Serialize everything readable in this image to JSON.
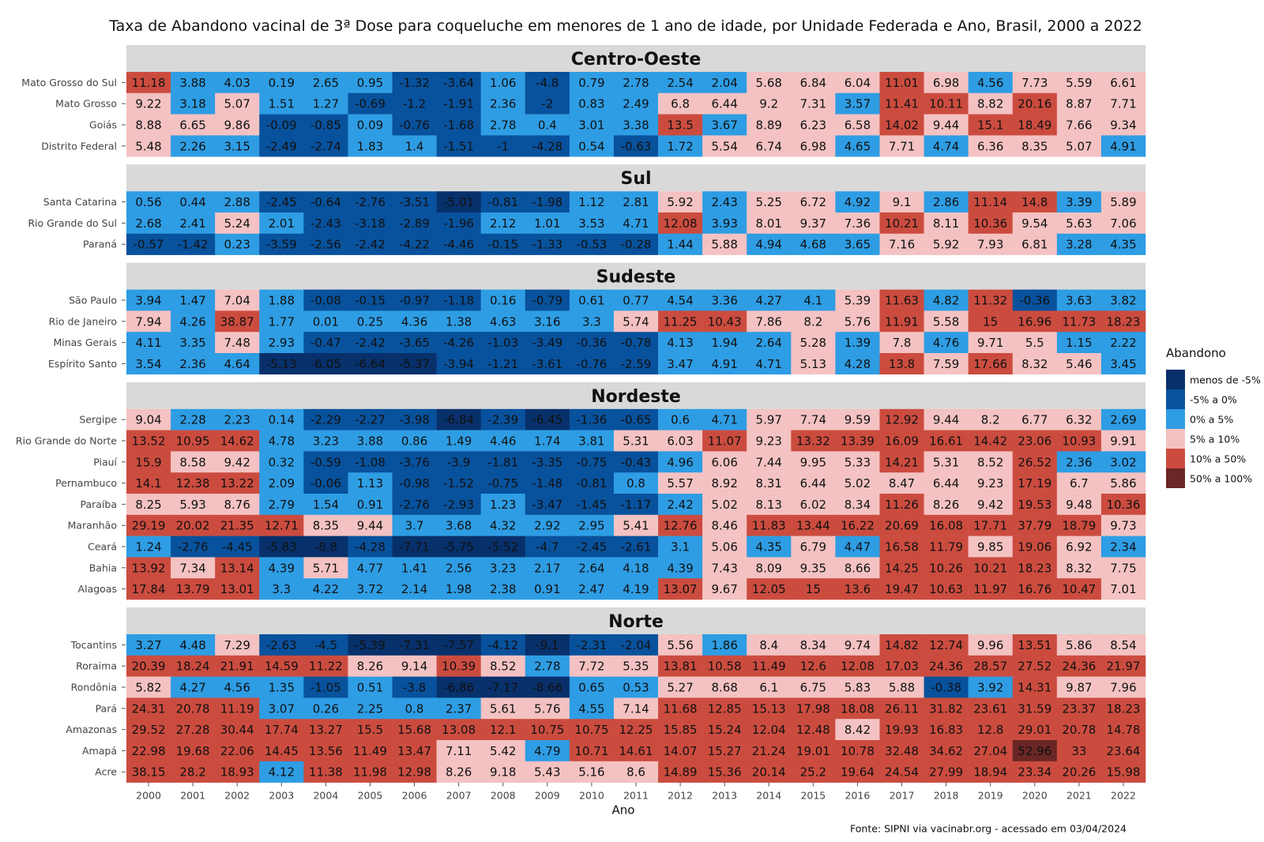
{
  "chart_data": {
    "type": "heatmap",
    "title": "Taxa de Abandono vacinal de 3ª Dose para coqueluche em menores de 1 ano de idade, por Unidade Federada e Ano, Brasil, 2000 a 2022",
    "xlabel": "Ano",
    "caption": "Fonte: SIPNI via vacinabr.org - acessado em 03/04/2024",
    "years": [
      "2000",
      "2001",
      "2002",
      "2003",
      "2004",
      "2005",
      "2006",
      "2007",
      "2008",
      "2009",
      "2010",
      "2011",
      "2012",
      "2013",
      "2014",
      "2015",
      "2016",
      "2017",
      "2018",
      "2019",
      "2020",
      "2021",
      "2022"
    ],
    "legend": {
      "title": "Abandono",
      "position": "right",
      "items": [
        {
          "label": "menos de -5%",
          "color": "#08306b"
        },
        {
          "label": "-5% a 0%",
          "color": "#08519c"
        },
        {
          "label": "0% a 5%",
          "color": "#2e9de4"
        },
        {
          "label": "5% a 10%",
          "color": "#f4c2c2"
        },
        {
          "label": "10% a 50%",
          "color": "#cb4c3f"
        },
        {
          "label": "50% a 100%",
          "color": "#6b2626"
        }
      ]
    },
    "panels": [
      {
        "region": "Centro-Oeste",
        "rows": [
          {
            "uf": "Mato Grosso do Sul",
            "values": [
              11.18,
              3.88,
              4.03,
              0.19,
              2.65,
              0.95,
              -1.32,
              -3.64,
              1.06,
              -4.8,
              0.79,
              2.78,
              2.54,
              2.04,
              5.68,
              6.84,
              6.04,
              11.01,
              6.98,
              4.56,
              7.73,
              5.59,
              6.61
            ]
          },
          {
            "uf": "Mato Grosso",
            "values": [
              9.22,
              3.18,
              5.07,
              1.51,
              1.27,
              -0.69,
              -1.2,
              -1.91,
              2.36,
              -2,
              0.83,
              2.49,
              6.8,
              6.44,
              9.2,
              7.31,
              3.57,
              11.41,
              10.11,
              8.82,
              20.16,
              8.87,
              7.71
            ]
          },
          {
            "uf": "Goiás",
            "values": [
              8.88,
              6.65,
              9.86,
              -0.09,
              -0.85,
              0.09,
              -0.76,
              -1.68,
              2.78,
              0.4,
              3.01,
              3.38,
              13.5,
              3.67,
              8.89,
              6.23,
              6.58,
              14.02,
              9.44,
              15.1,
              18.49,
              7.66,
              9.34
            ]
          },
          {
            "uf": "Distrito Federal",
            "values": [
              5.48,
              2.26,
              3.15,
              -2.49,
              -2.74,
              1.83,
              1.4,
              -1.51,
              -1,
              -4.28,
              0.54,
              -0.63,
              1.72,
              5.54,
              6.74,
              6.98,
              4.65,
              7.71,
              4.74,
              6.36,
              8.35,
              5.07,
              4.91
            ]
          }
        ]
      },
      {
        "region": "Sul",
        "rows": [
          {
            "uf": "Santa Catarina",
            "values": [
              0.56,
              0.44,
              2.88,
              -2.45,
              -0.64,
              -2.76,
              -3.51,
              -5.01,
              -0.81,
              -1.98,
              1.12,
              2.81,
              5.92,
              2.43,
              5.25,
              6.72,
              4.92,
              9.1,
              2.86,
              11.14,
              14.8,
              3.39,
              5.89
            ]
          },
          {
            "uf": "Rio Grande do Sul",
            "values": [
              2.68,
              2.41,
              5.24,
              2.01,
              -2.43,
              -3.18,
              -2.89,
              -1.96,
              2.12,
              1.01,
              3.53,
              4.71,
              12.08,
              3.93,
              8.01,
              9.37,
              7.36,
              10.21,
              8.11,
              10.36,
              9.54,
              5.63,
              7.06
            ]
          },
          {
            "uf": "Paraná",
            "values": [
              -0.57,
              -1.42,
              0.23,
              -3.59,
              -2.56,
              -2.42,
              -4.22,
              -4.46,
              -0.15,
              -1.33,
              -0.53,
              -0.28,
              1.44,
              5.88,
              4.94,
              4.68,
              3.65,
              7.16,
              5.92,
              7.93,
              6.81,
              3.28,
              4.35
            ]
          }
        ]
      },
      {
        "region": "Sudeste",
        "rows": [
          {
            "uf": "São Paulo",
            "values": [
              3.94,
              1.47,
              7.04,
              1.88,
              -0.08,
              -0.15,
              -0.97,
              -1.18,
              0.16,
              -0.79,
              0.61,
              0.77,
              4.54,
              3.36,
              4.27,
              4.1,
              5.39,
              11.63,
              4.82,
              11.32,
              -0.36,
              3.63,
              3.82
            ]
          },
          {
            "uf": "Rio de Janeiro",
            "values": [
              7.94,
              4.26,
              38.87,
              1.77,
              0.01,
              0.25,
              4.36,
              1.38,
              4.63,
              3.16,
              3.3,
              5.74,
              11.25,
              10.43,
              7.86,
              8.2,
              5.76,
              11.91,
              5.58,
              15,
              16.96,
              11.73,
              18.23
            ]
          },
          {
            "uf": "Minas Gerais",
            "values": [
              4.11,
              3.35,
              7.48,
              2.93,
              -0.47,
              -2.42,
              -3.65,
              -4.26,
              -1.03,
              -3.49,
              -0.36,
              -0.78,
              4.13,
              1.94,
              2.64,
              5.28,
              1.39,
              7.8,
              4.76,
              9.71,
              5.5,
              1.15,
              2.22
            ]
          },
          {
            "uf": "Espírito Santo",
            "values": [
              3.54,
              2.36,
              4.64,
              -5.13,
              -6.05,
              -6.64,
              -5.37,
              -3.94,
              -1.21,
              -3.61,
              -0.76,
              -2.59,
              3.47,
              4.91,
              4.71,
              5.13,
              4.28,
              13.8,
              7.59,
              17.66,
              8.32,
              5.46,
              3.45
            ]
          }
        ]
      },
      {
        "region": "Nordeste",
        "rows": [
          {
            "uf": "Sergipe",
            "values": [
              9.04,
              2.28,
              2.23,
              0.14,
              -2.29,
              -2.27,
              -3.98,
              -6.84,
              -2.39,
              -6.45,
              -1.36,
              -0.65,
              0.6,
              4.71,
              5.97,
              7.74,
              9.59,
              12.92,
              9.44,
              8.2,
              6.77,
              6.32,
              2.69
            ]
          },
          {
            "uf": "Rio Grande do Norte",
            "values": [
              13.52,
              10.95,
              14.62,
              4.78,
              3.23,
              3.88,
              0.86,
              1.49,
              4.46,
              1.74,
              3.81,
              5.31,
              6.03,
              11.07,
              9.23,
              13.32,
              13.39,
              16.09,
              16.61,
              14.42,
              23.06,
              10.93,
              9.91
            ]
          },
          {
            "uf": "Piauí",
            "values": [
              15.9,
              8.58,
              9.42,
              0.32,
              -0.59,
              -1.08,
              -3.76,
              -3.9,
              -1.81,
              -3.35,
              -0.75,
              -0.43,
              4.96,
              6.06,
              7.44,
              9.95,
              5.33,
              14.21,
              5.31,
              8.52,
              26.52,
              2.36,
              3.02
            ]
          },
          {
            "uf": "Pernambuco",
            "values": [
              14.1,
              12.38,
              13.22,
              2.09,
              -0.06,
              1.13,
              -0.98,
              -1.52,
              -0.75,
              -1.48,
              -0.81,
              0.8,
              5.57,
              8.92,
              8.31,
              6.44,
              5.02,
              8.47,
              6.44,
              9.23,
              17.19,
              6.7,
              5.86
            ]
          },
          {
            "uf": "Paraíba",
            "values": [
              8.25,
              5.93,
              8.76,
              2.79,
              1.54,
              0.91,
              -2.76,
              -2.93,
              1.23,
              -3.47,
              -1.45,
              -1.17,
              2.42,
              5.02,
              8.13,
              6.02,
              8.34,
              11.26,
              8.26,
              9.42,
              19.53,
              9.48,
              10.36
            ]
          },
          {
            "uf": "Maranhão",
            "values": [
              29.19,
              20.02,
              21.35,
              12.71,
              8.35,
              9.44,
              3.7,
              3.68,
              4.32,
              2.92,
              2.95,
              5.41,
              12.76,
              8.46,
              11.83,
              13.44,
              16.22,
              20.69,
              16.08,
              17.71,
              37.79,
              18.79,
              9.73
            ]
          },
          {
            "uf": "Ceará",
            "values": [
              1.24,
              -2.76,
              -4.45,
              -5.83,
              -8.8,
              -4.28,
              -7.71,
              -5.75,
              -5.52,
              -4.7,
              -2.45,
              -2.61,
              3.1,
              5.06,
              4.35,
              6.79,
              4.47,
              16.58,
              11.79,
              9.85,
              19.06,
              6.92,
              2.34
            ]
          },
          {
            "uf": "Bahia",
            "values": [
              13.92,
              7.34,
              13.14,
              4.39,
              5.71,
              4.77,
              1.41,
              2.56,
              3.23,
              2.17,
              2.64,
              4.18,
              4.39,
              7.43,
              8.09,
              9.35,
              8.66,
              14.25,
              10.26,
              10.21,
              18.23,
              8.32,
              7.75
            ]
          },
          {
            "uf": "Alagoas",
            "values": [
              17.84,
              13.79,
              13.01,
              3.3,
              4.22,
              3.72,
              2.14,
              1.98,
              2.38,
              0.91,
              2.47,
              4.19,
              13.07,
              9.67,
              12.05,
              15,
              13.6,
              19.47,
              10.63,
              11.97,
              16.76,
              10.47,
              7.01
            ]
          }
        ]
      },
      {
        "region": "Norte",
        "rows": [
          {
            "uf": "Tocantins",
            "values": [
              3.27,
              4.48,
              7.29,
              -2.63,
              -4.5,
              -5.39,
              -7.31,
              -7.57,
              -4.12,
              -9.1,
              -2.31,
              -2.04,
              5.56,
              1.86,
              8.4,
              8.34,
              9.74,
              14.82,
              12.74,
              9.96,
              13.51,
              5.86,
              8.54
            ]
          },
          {
            "uf": "Roraima",
            "values": [
              20.39,
              18.24,
              21.91,
              14.59,
              11.22,
              8.26,
              9.14,
              10.39,
              8.52,
              2.78,
              7.72,
              5.35,
              13.81,
              10.58,
              11.49,
              12.6,
              12.08,
              17.03,
              24.36,
              28.57,
              27.52,
              24.36,
              21.97
            ]
          },
          {
            "uf": "Rondônia",
            "values": [
              5.82,
              4.27,
              4.56,
              1.35,
              -1.05,
              0.51,
              -3.8,
              -6.86,
              -7.17,
              -8.66,
              0.65,
              0.53,
              5.27,
              8.68,
              6.1,
              6.75,
              5.83,
              5.88,
              -0.38,
              3.92,
              14.31,
              9.87,
              7.96
            ]
          },
          {
            "uf": "Pará",
            "values": [
              24.31,
              20.78,
              11.19,
              3.07,
              0.26,
              2.25,
              0.8,
              2.37,
              5.61,
              5.76,
              4.55,
              7.14,
              11.68,
              12.85,
              15.13,
              17.98,
              18.08,
              26.11,
              31.82,
              23.61,
              31.59,
              23.37,
              18.23
            ]
          },
          {
            "uf": "Amazonas",
            "values": [
              29.52,
              27.28,
              30.44,
              17.74,
              13.27,
              15.5,
              15.68,
              13.08,
              12.1,
              10.75,
              10.75,
              12.25,
              15.85,
              15.24,
              12.04,
              12.48,
              8.42,
              19.93,
              16.83,
              12.8,
              29.01,
              20.78,
              14.78
            ]
          },
          {
            "uf": "Amapá",
            "values": [
              22.98,
              19.68,
              22.06,
              14.45,
              13.56,
              11.49,
              13.47,
              7.11,
              5.42,
              4.79,
              10.71,
              14.61,
              14.07,
              15.27,
              21.24,
              19.01,
              10.78,
              32.48,
              34.62,
              27.04,
              52.96,
              33,
              23.64
            ]
          },
          {
            "uf": "Acre",
            "values": [
              38.15,
              28.2,
              18.93,
              4.12,
              11.38,
              11.98,
              12.98,
              8.26,
              9.18,
              5.43,
              5.16,
              8.6,
              14.89,
              15.36,
              20.14,
              25.2,
              19.64,
              24.54,
              27.99,
              18.94,
              23.34,
              20.26,
              15.98
            ]
          }
        ]
      }
    ]
  }
}
